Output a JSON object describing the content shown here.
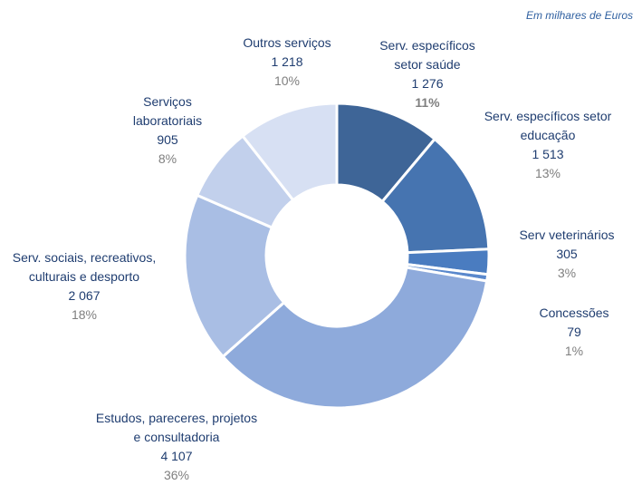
{
  "chart_data": {
    "type": "donut",
    "subtitle": "Em milhares de Euros",
    "categories": [
      "Serv.  específicos\nsetor saúde",
      "Serv.  específicos setor\neducação",
      "Serv  veterinários",
      "Concessões",
      "Estudos, pareceres,  projetos\ne consultadoria",
      "Serv.  sociais, recreativos,\nculturais  e desporto",
      "Serviços\nlaboratoriais",
      "Outros serviços"
    ],
    "values": [
      1276,
      1513,
      305,
      79,
      4107,
      2067,
      905,
      1218
    ],
    "value_labels": [
      "1 276",
      "1 513",
      "305",
      "79",
      "4 107",
      "2 067",
      "905",
      "1 218"
    ],
    "percent_labels": [
      "11%",
      "13%",
      "3%",
      "1%",
      "36%",
      "18%",
      "8%",
      "10%"
    ],
    "colors": [
      "#3e6597",
      "#4674b0",
      "#4a7cc0",
      "#5a88cc",
      "#8eaadb",
      "#a9bee4",
      "#c2d0ec",
      "#d7e0f3"
    ]
  }
}
